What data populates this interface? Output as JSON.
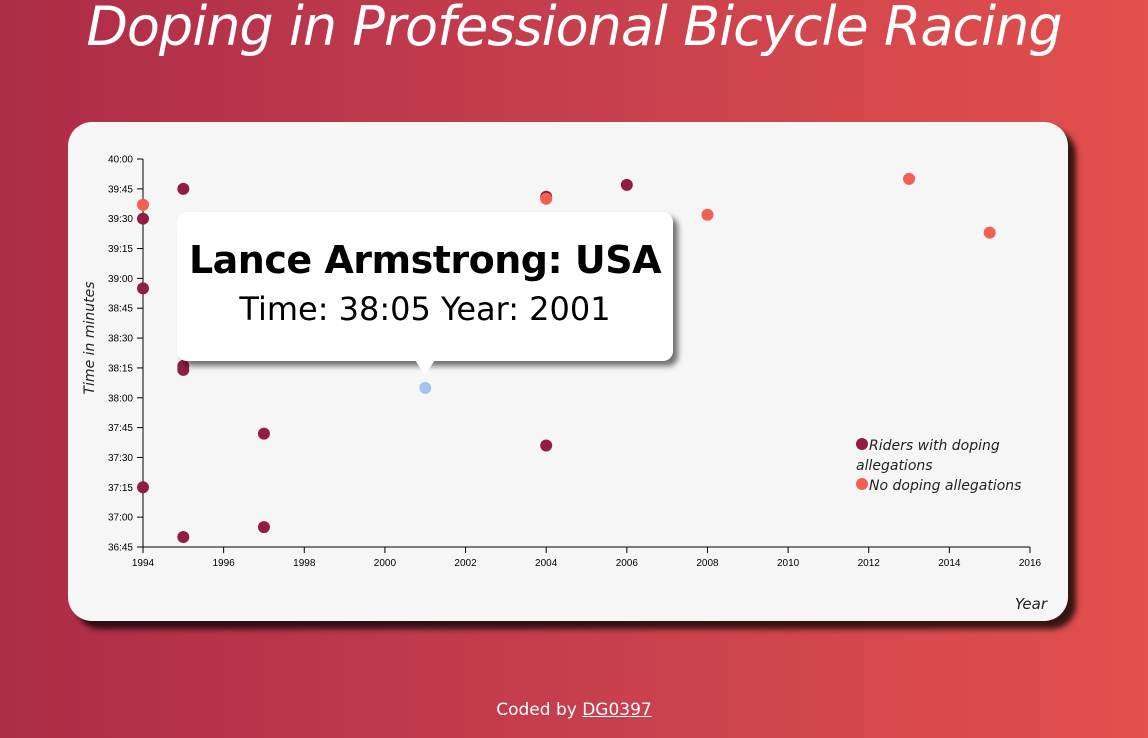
{
  "page": {
    "title": "Doping in Professional Bicycle Racing",
    "footer_prefix": "Coded by",
    "footer_link": "DG0397"
  },
  "tooltip": {
    "name": "Lance Armstrong: USA",
    "detail": "Time: 38:05 Year: 2001"
  },
  "colors": {
    "doping": "#931c42",
    "no_doping": "#f35f50",
    "highlight": "#a6c2ee"
  },
  "chart_data": {
    "type": "scatter",
    "title": "Doping in Professional Bicycle Racing",
    "xlabel": "Year",
    "ylabel": "Time in minutes",
    "xlim": [
      1994,
      2016
    ],
    "ylim_seconds": [
      2205,
      2400
    ],
    "x_ticks": [
      "1994",
      "1996",
      "1998",
      "2000",
      "2002",
      "2004",
      "2006",
      "2008",
      "2010",
      "2012",
      "2014",
      "2016"
    ],
    "y_ticks": [
      "40:00",
      "39:45",
      "39:30",
      "39:15",
      "39:00",
      "38:45",
      "38:30",
      "38:15",
      "38:00",
      "37:45",
      "37:30",
      "37:15",
      "37:00",
      "36:45"
    ],
    "legend": {
      "doping": [
        "Riders with doping",
        "allegations"
      ],
      "no_doping": "No doping allegations",
      "placement": "right"
    },
    "series": [
      {
        "name": "Riders with doping allegations",
        "points": [
          {
            "x": 1995,
            "y": "39:45"
          },
          {
            "x": 1994,
            "y": "39:30"
          },
          {
            "x": 1994,
            "y": "38:55"
          },
          {
            "x": 1995,
            "y": "38:45"
          },
          {
            "x": 1995,
            "y": "38:16"
          },
          {
            "x": 1995,
            "y": "38:14"
          },
          {
            "x": 1994,
            "y": "37:15"
          },
          {
            "x": 1995,
            "y": "36:50"
          },
          {
            "x": 1997,
            "y": "37:42"
          },
          {
            "x": 1997,
            "y": "36:55"
          },
          {
            "x": 2004,
            "y": "39:41"
          },
          {
            "x": 2006,
            "y": "39:47"
          },
          {
            "x": 2004,
            "y": "37:36"
          },
          {
            "x": 2001,
            "y": "38:05"
          }
        ]
      },
      {
        "name": "No doping allegations",
        "points": [
          {
            "x": 1994,
            "y": "39:37"
          },
          {
            "x": 2004,
            "y": "39:40"
          },
          {
            "x": 2008,
            "y": "39:32"
          },
          {
            "x": 2013,
            "y": "39:50"
          },
          {
            "x": 2015,
            "y": "39:23"
          }
        ]
      }
    ],
    "highlighted": {
      "x": 2001,
      "y": "38:05"
    }
  }
}
